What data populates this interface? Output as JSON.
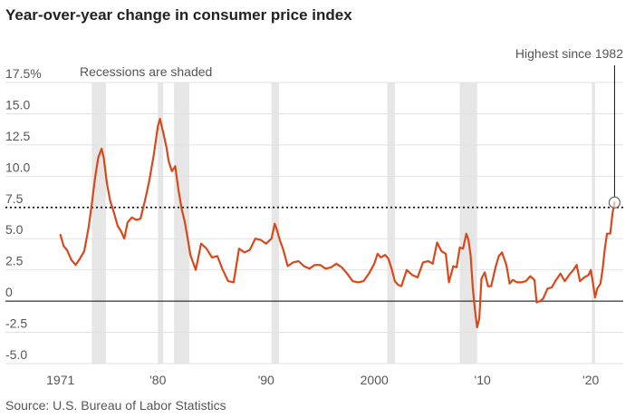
{
  "chart_data": {
    "type": "line",
    "title": "Year-over-year change in consumer price index",
    "source": "Source: U.S. Bureau of Labor Statistics",
    "annotations": {
      "recessions": "Recessions are shaded",
      "peak": "Highest since 1982"
    },
    "reference_value": 7.5,
    "xlim": [
      1969.6,
      2023.0
    ],
    "ylim": [
      -5.0,
      17.5
    ],
    "y_ticks": [
      17.5,
      15.0,
      12.5,
      10.0,
      7.5,
      5.0,
      2.5,
      0,
      -2.5,
      -5.0
    ],
    "y_tick_labels": [
      "17.5%",
      "15.0",
      "12.5",
      "10.0",
      "7.5",
      "5.0",
      "2.5",
      "0",
      "-2.5",
      "-5.0"
    ],
    "x_ticks": [
      1971,
      1980,
      1990,
      2000,
      2010,
      2020
    ],
    "x_tick_labels": [
      "1971",
      "'80",
      "'90",
      "2000",
      "'10",
      "'20"
    ],
    "recessions": [
      [
        1973.9,
        1975.2
      ],
      [
        1980.0,
        1980.5
      ],
      [
        1981.5,
        1982.9
      ],
      [
        1990.5,
        1991.2
      ],
      [
        2001.2,
        2001.9
      ],
      [
        2007.9,
        2009.5
      ],
      [
        2020.1,
        2020.4
      ]
    ],
    "series": [
      {
        "name": "CPI year-over-year change (%)",
        "color": "#d9481b",
        "x": [
          1971.0,
          1971.3,
          1971.6,
          1972.0,
          1972.4,
          1972.8,
          1973.2,
          1973.6,
          1973.9,
          1974.2,
          1974.5,
          1974.8,
          1975.0,
          1975.3,
          1975.6,
          1975.9,
          1976.3,
          1976.6,
          1976.9,
          1977.2,
          1977.6,
          1978.0,
          1978.4,
          1978.8,
          1979.2,
          1979.6,
          1980.0,
          1980.2,
          1980.5,
          1980.8,
          1981.0,
          1981.3,
          1981.6,
          1981.9,
          1982.2,
          1982.5,
          1982.8,
          1983.0,
          1983.5,
          1984.0,
          1984.5,
          1985.0,
          1985.5,
          1986.0,
          1986.5,
          1987.0,
          1987.5,
          1988.0,
          1988.5,
          1989.0,
          1989.5,
          1990.0,
          1990.5,
          1990.8,
          1991.0,
          1991.3,
          1991.6,
          1992.0,
          1992.5,
          1993.0,
          1993.5,
          1994.0,
          1994.5,
          1995.0,
          1995.5,
          1996.0,
          1996.5,
          1997.0,
          1997.5,
          1998.0,
          1998.5,
          1999.0,
          1999.5,
          2000.0,
          2000.3,
          2000.6,
          2001.0,
          2001.3,
          2001.6,
          2001.9,
          2002.2,
          2002.5,
          2003.0,
          2003.5,
          2004.0,
          2004.5,
          2005.0,
          2005.4,
          2005.8,
          2006.2,
          2006.6,
          2006.9,
          2007.3,
          2007.6,
          2007.9,
          2008.2,
          2008.5,
          2008.7,
          2008.9,
          2009.1,
          2009.3,
          2009.5,
          2009.7,
          2009.9,
          2010.2,
          2010.5,
          2010.8,
          2011.2,
          2011.5,
          2011.8,
          2012.2,
          2012.5,
          2012.8,
          2013.2,
          2013.6,
          2014.0,
          2014.4,
          2014.8,
          2015.0,
          2015.3,
          2015.6,
          2016.0,
          2016.4,
          2016.8,
          2017.2,
          2017.6,
          2018.0,
          2018.4,
          2018.7,
          2019.0,
          2019.4,
          2019.8,
          2020.0,
          2020.2,
          2020.4,
          2020.6,
          2020.9,
          2021.1,
          2021.3,
          2021.5,
          2021.8,
          2022.0,
          2022.2
        ],
        "y": [
          5.3,
          4.4,
          4.1,
          3.3,
          2.9,
          3.4,
          4.0,
          5.9,
          7.8,
          9.9,
          11.5,
          12.2,
          11.5,
          9.4,
          8.0,
          7.2,
          6.0,
          5.6,
          5.0,
          6.3,
          6.7,
          6.5,
          6.6,
          8.0,
          9.6,
          11.6,
          14.0,
          14.6,
          13.5,
          12.3,
          11.2,
          10.4,
          10.8,
          8.9,
          7.4,
          6.3,
          4.8,
          3.7,
          2.5,
          4.6,
          4.2,
          3.5,
          3.6,
          2.5,
          1.6,
          1.5,
          4.2,
          3.9,
          4.1,
          5.0,
          4.9,
          4.6,
          5.0,
          6.2,
          5.7,
          4.8,
          4.1,
          2.8,
          3.1,
          3.2,
          2.8,
          2.6,
          2.9,
          2.9,
          2.6,
          2.7,
          3.0,
          2.7,
          2.2,
          1.6,
          1.5,
          1.6,
          2.2,
          3.0,
          3.8,
          3.5,
          3.7,
          3.4,
          2.6,
          1.6,
          1.3,
          1.2,
          2.5,
          2.1,
          1.9,
          3.1,
          3.2,
          3.0,
          4.7,
          4.0,
          3.8,
          1.5,
          2.8,
          2.7,
          4.3,
          4.2,
          5.4,
          4.9,
          3.7,
          1.1,
          -0.7,
          -2.1,
          -1.4,
          1.8,
          2.3,
          1.2,
          1.2,
          2.7,
          3.6,
          3.9,
          2.9,
          1.4,
          1.7,
          1.5,
          1.5,
          1.6,
          2.0,
          1.7,
          -0.1,
          0.0,
          0.2,
          1.0,
          1.1,
          1.7,
          2.2,
          1.6,
          2.1,
          2.5,
          2.9,
          1.6,
          1.9,
          2.1,
          2.5,
          1.5,
          0.3,
          1.0,
          1.4,
          2.6,
          4.2,
          5.4,
          5.4,
          7.0,
          7.9
        ]
      }
    ]
  }
}
